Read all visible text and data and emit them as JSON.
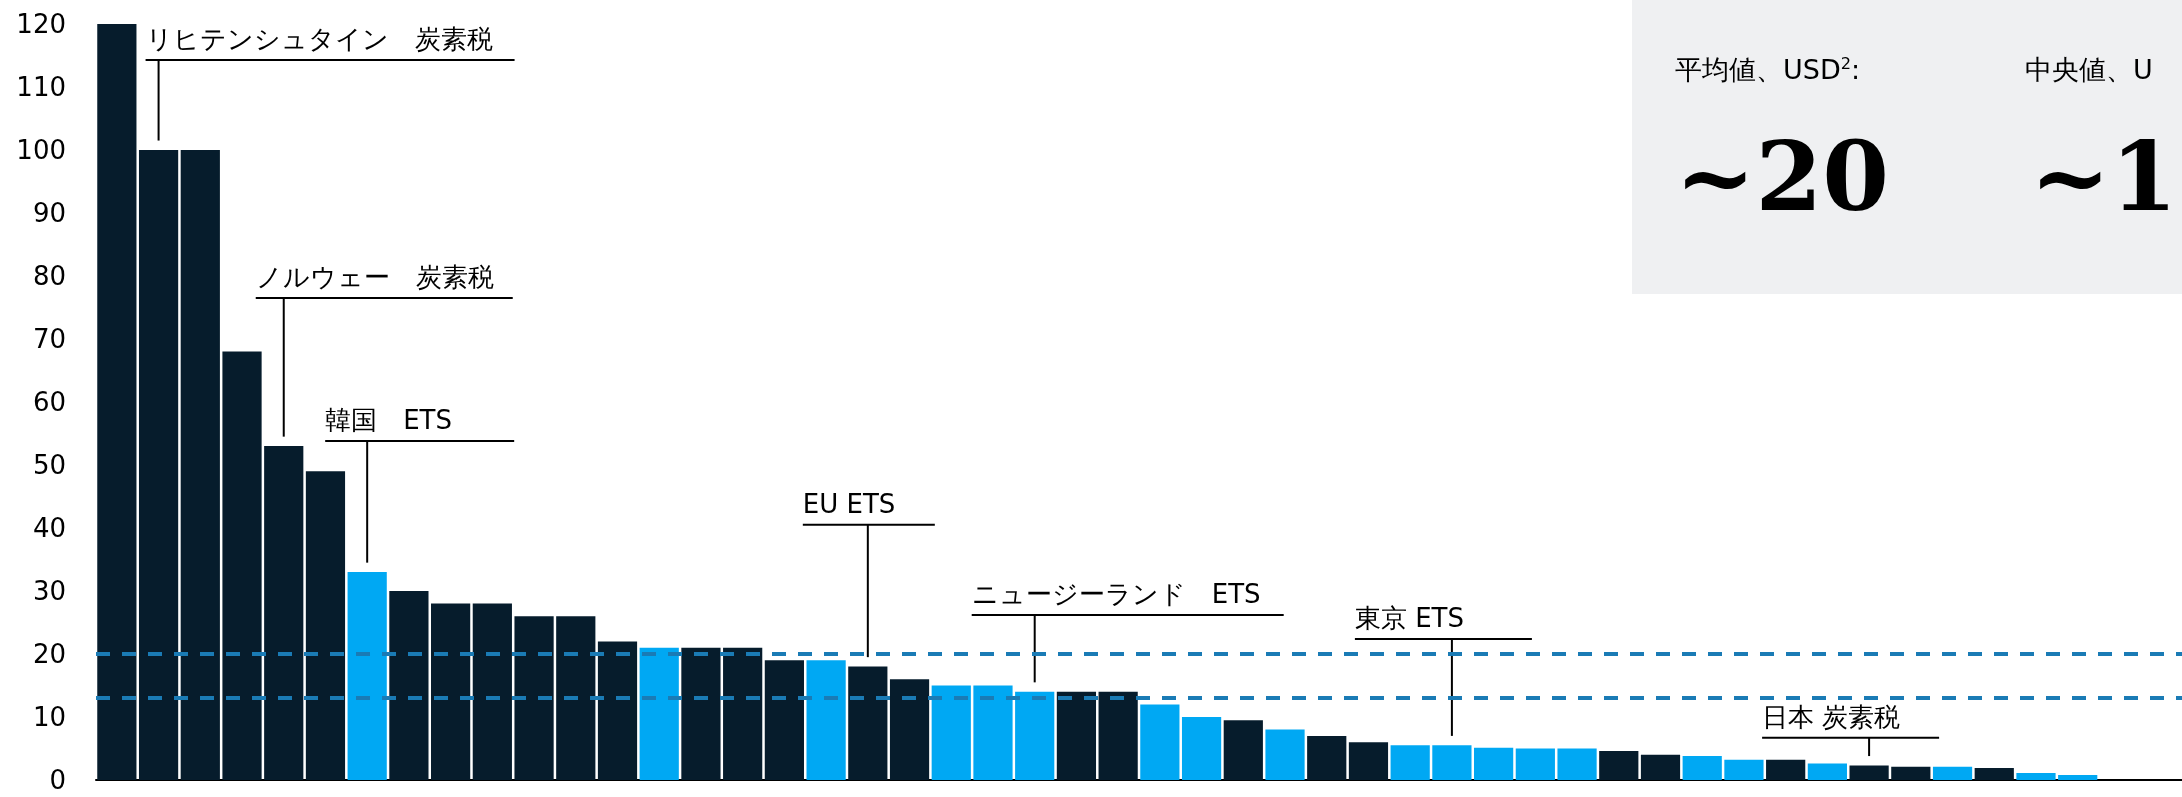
{
  "chart_data": {
    "type": "bar",
    "categories": [
      null,
      null,
      null,
      null,
      null,
      null,
      null,
      null,
      null,
      null,
      null,
      null,
      null,
      null,
      null,
      null,
      null,
      null,
      null,
      null,
      null,
      null,
      null,
      null,
      null,
      null,
      null,
      null,
      null,
      null,
      null,
      null,
      null,
      null,
      null,
      null,
      null,
      null,
      null,
      null,
      null,
      null,
      null,
      null,
      null,
      null,
      null,
      null,
      null,
      null
    ],
    "values": [
      120,
      100,
      100,
      68,
      53,
      49,
      33,
      30,
      28,
      28,
      26,
      26,
      22,
      21,
      21,
      21,
      19,
      19,
      18,
      16,
      15,
      15,
      14,
      14,
      14,
      12,
      10,
      9.5,
      8,
      7,
      6,
      5.5,
      5.5,
      5.1,
      5,
      5,
      4.6,
      4,
      3.8,
      3.2,
      3.2,
      2.6,
      2.3,
      2.1,
      2.1,
      1.9,
      1.1,
      0.8,
      null,
      null
    ],
    "colors": [
      "#061c2c",
      "#061c2c",
      "#061c2c",
      "#061c2c",
      "#061c2c",
      "#061c2c",
      "#00a8f3",
      "#061c2c",
      "#061c2c",
      "#061c2c",
      "#061c2c",
      "#061c2c",
      "#061c2c",
      "#00a8f3",
      "#061c2c",
      "#061c2c",
      "#061c2c",
      "#00a8f3",
      "#061c2c",
      "#061c2c",
      "#00a8f3",
      "#00a8f3",
      "#00a8f3",
      "#061c2c",
      "#061c2c",
      "#00a8f3",
      "#00a8f3",
      "#061c2c",
      "#00a8f3",
      "#061c2c",
      "#061c2c",
      "#00a8f3",
      "#00a8f3",
      "#00a8f3",
      "#00a8f3",
      "#00a8f3",
      "#061c2c",
      "#061c2c",
      "#00a8f3",
      "#00a8f3",
      "#061c2c",
      "#00a8f3",
      "#061c2c",
      "#061c2c",
      "#00a8f3",
      "#061c2c",
      "#00a8f3",
      "#00a8f3",
      "#061c2c",
      "#061c2c"
    ],
    "ylim": [
      0,
      120
    ],
    "yticks": [
      0,
      10,
      20,
      30,
      40,
      50,
      60,
      70,
      80,
      90,
      100,
      110,
      120
    ],
    "ref_lines": [
      {
        "axis": "y",
        "value": 20,
        "color": "#1a7bb5",
        "line_style": "dashed"
      },
      {
        "axis": "y",
        "value": 13,
        "color": "#1a7bb5",
        "line_style": "dashed"
      }
    ],
    "annotations": [
      "リヒテンシュタイン　炭素税",
      "ノルウェー　炭素税",
      "韓国　ETS",
      "EU ETS",
      "ニュージーランド　ETS",
      "東京 ETS",
      "日本 炭素税",
      "平均値、USD$^{2}$:",
      "~20",
      "中央値、U",
      "~1"
    ]
  }
}
